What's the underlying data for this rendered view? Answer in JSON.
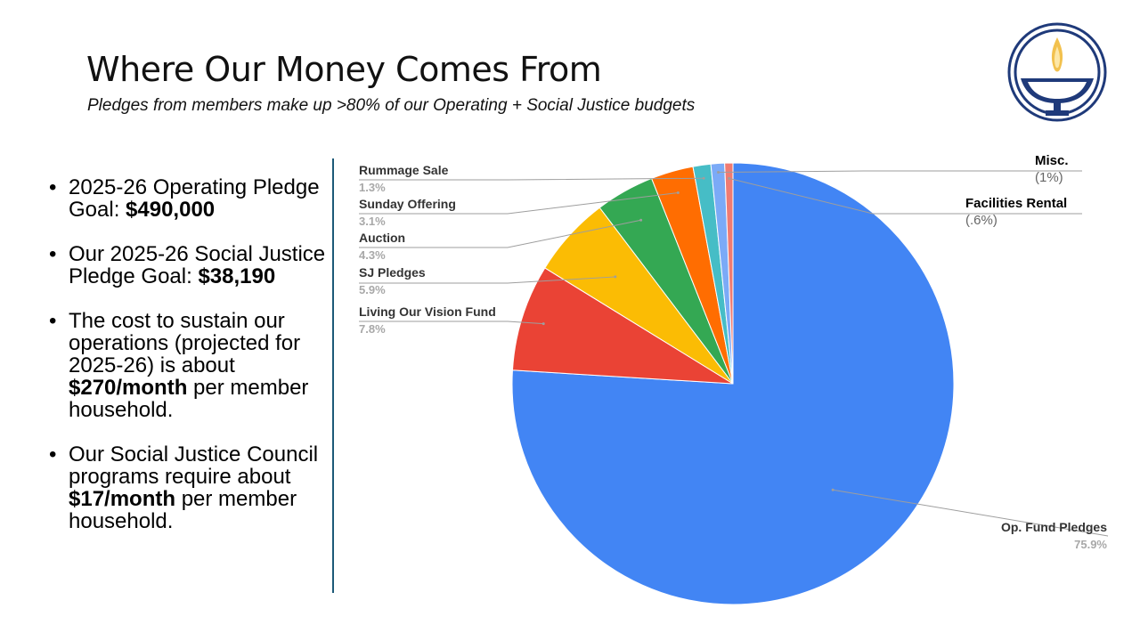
{
  "slide": {
    "title": "Where Our Money Comes From",
    "subtitle": "Pledges from members make up >80% of our Operating + Social Justice budgets"
  },
  "bullets": [
    {
      "pre": "2025-26 Operating Pledge Goal: ",
      "bold": "$490,000",
      "post": ""
    },
    {
      "pre": "Our 2025-26 Social Justice Pledge Goal: ",
      "bold": "$38,190",
      "post": ""
    },
    {
      "pre": "The cost to sustain our operations (projected for 2025-26) is about ",
      "bold": "$270/month",
      "post": " per member household."
    },
    {
      "pre": "Our Social Justice Council programs require about ",
      "bold": "$17/month",
      "post": " per member household."
    }
  ],
  "logo": {
    "icon": "flaming-chalice-icon",
    "color": "#1f3a7a",
    "flame_color": "#f2c14e"
  },
  "chart_data": {
    "type": "pie",
    "start": "top, clockwise",
    "slices": [
      {
        "label": "Op. Fund Pledges",
        "value": 75.9,
        "pct_label": "75.9%",
        "color": "#4285f4"
      },
      {
        "label": "Living Our Vision Fund",
        "value": 7.8,
        "pct_label": "7.8%",
        "color": "#ea4335"
      },
      {
        "label": "SJ Pledges",
        "value": 5.9,
        "pct_label": "5.9%",
        "color": "#fbbc04"
      },
      {
        "label": "Auction",
        "value": 4.3,
        "pct_label": "4.3%",
        "color": "#34a853"
      },
      {
        "label": "Sunday Offering",
        "value": 3.1,
        "pct_label": "3.1%",
        "color": "#ff6d01"
      },
      {
        "label": "Rummage Sale",
        "value": 1.3,
        "pct_label": "1.3%",
        "color": "#46bdc6"
      },
      {
        "label": "Misc.",
        "value": 1.0,
        "pct_label": "(1%)",
        "color": "#7baaf7"
      },
      {
        "label": "Facilities Rental",
        "value": 0.6,
        "pct_label": "(.6%)",
        "color": "#f07b72"
      }
    ]
  }
}
